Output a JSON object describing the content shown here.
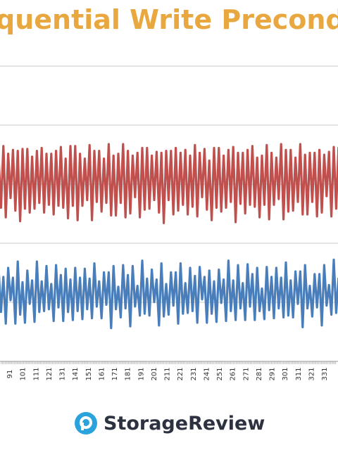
{
  "chart_data": {
    "type": "line",
    "title": "quential Write Precond",
    "x_ticks": [
      "91",
      "101",
      "111",
      "121",
      "131",
      "141",
      "151",
      "161",
      "171",
      "181",
      "191",
      "201",
      "211",
      "221",
      "231",
      "241",
      "251",
      "261",
      "271",
      "281",
      "291",
      "301",
      "311",
      "321",
      "331"
    ],
    "x_range": [
      84,
      340
    ],
    "grid": true,
    "series": [
      {
        "color": "#c0504d",
        "pattern": [
          0.92,
          0.35,
          0.95,
          0.28,
          0.9,
          0.4,
          0.97,
          0.3,
          0.88,
          0.22,
          0.93,
          0.38,
          0.96,
          0.26,
          0.91,
          0.33,
          0.89,
          0.42,
          0.95,
          0.24
        ]
      },
      {
        "color": "#4a7ebb",
        "pattern": [
          0.72,
          0.2,
          0.55,
          0.1,
          0.68,
          0.28,
          0.6,
          0.05,
          0.7,
          0.18,
          0.5,
          0.12,
          0.66,
          0.25,
          0.58,
          0.08,
          0.71,
          0.22,
          0.52,
          0.15
        ]
      }
    ]
  },
  "brand": {
    "name": "StorageReview",
    "icon": "storagereview-logo-icon",
    "color": "#2aa3dd"
  }
}
